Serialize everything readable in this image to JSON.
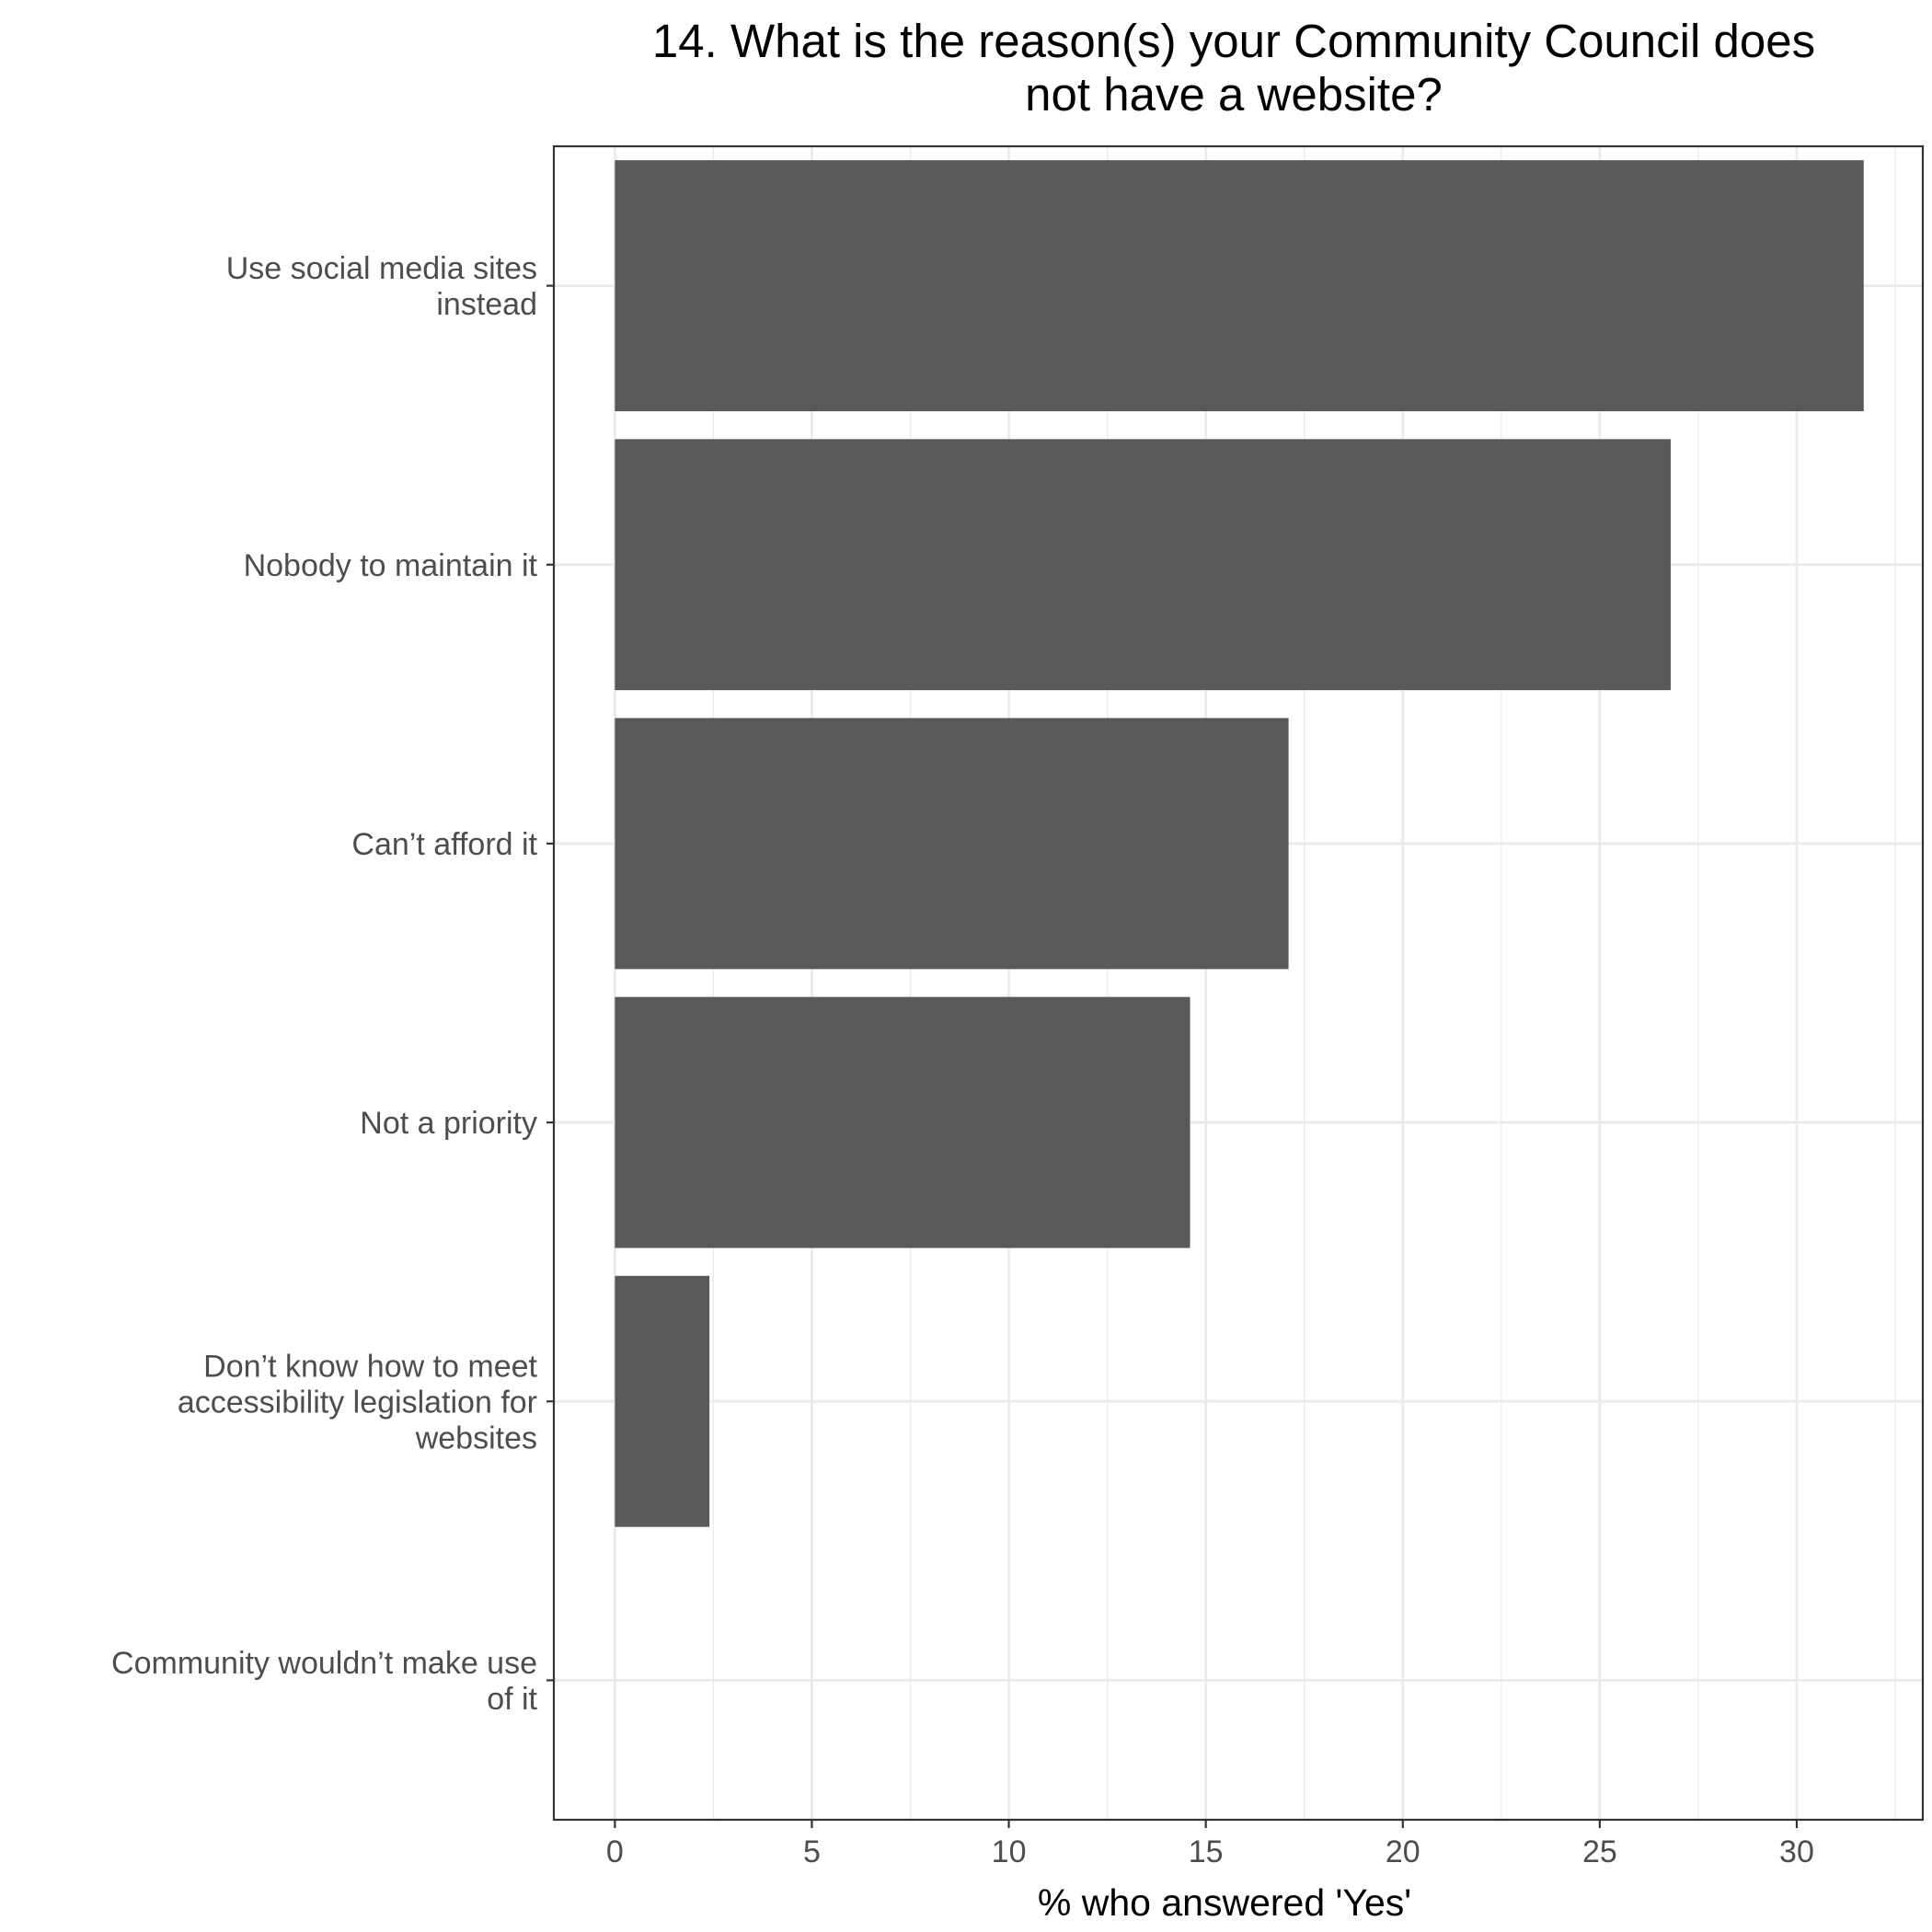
{
  "chart_data": {
    "type": "bar",
    "orientation": "horizontal",
    "title": "14. What is the reason(s) your Community Council does not have a website?",
    "title_lines": [
      "14. What is the reason(s) your Community Council does",
      "not have a website?"
    ],
    "xlabel": "% who answered 'Yes'",
    "ylabel": "",
    "xlim": [
      -1.55,
      33.2
    ],
    "x_ticks": [
      0,
      5,
      10,
      15,
      20,
      25,
      30
    ],
    "categories": [
      "Use social media sites instead",
      "Nobody to maintain it",
      "Can’t afford it",
      "Not a priority",
      "Don’t know how to meet accessibility legislation for websites",
      "Community wouldn’t make use of it"
    ],
    "category_label_lines": [
      [
        "Use social media sites",
        "instead"
      ],
      [
        "Nobody to maintain it"
      ],
      [
        "Can’t afford it"
      ],
      [
        "Not a priority"
      ],
      [
        "Don’t know how to meet",
        "accessibility legislation for",
        "websites"
      ],
      [
        "Community wouldn’t make use",
        "of it"
      ]
    ],
    "values": [
      31.7,
      26.8,
      17.1,
      14.6,
      2.4,
      0
    ],
    "bar_color": "#595959",
    "grid": true,
    "grid_color": "#ebebeb",
    "panel_border_color": "#333333",
    "legend": "none"
  }
}
